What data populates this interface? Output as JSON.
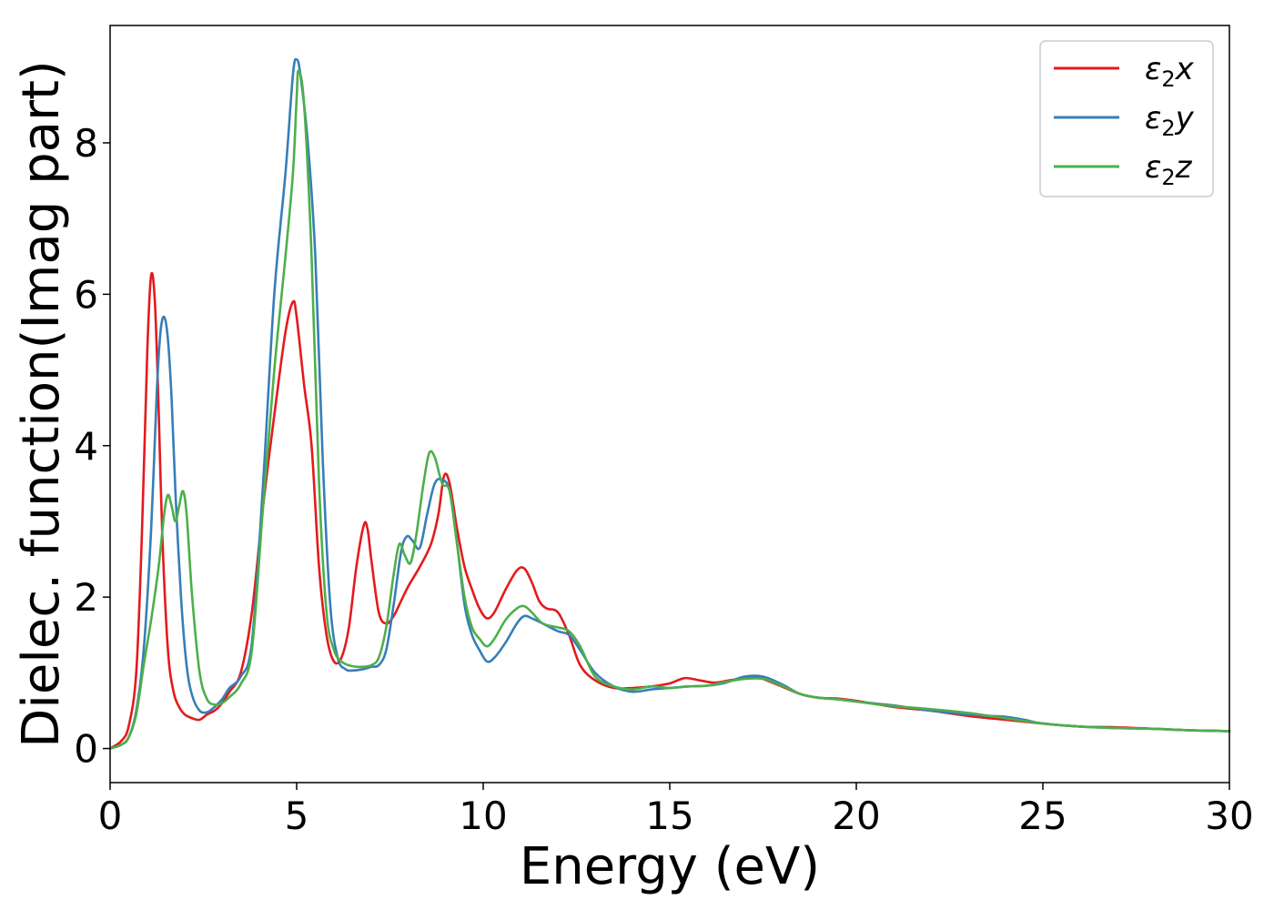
{
  "chart_data": {
    "type": "line",
    "title": "",
    "xlabel": "Energy (eV)",
    "ylabel": "Dielec. function(Imag part)",
    "xlim": [
      0,
      30
    ],
    "ylim": [
      -0.45,
      9.55
    ],
    "xticks": [
      0,
      5,
      10,
      15,
      20,
      25,
      30
    ],
    "xtick_labels": [
      "0",
      "5",
      "10",
      "15",
      "20",
      "25",
      "30"
    ],
    "yticks": [
      0,
      2,
      4,
      6,
      8
    ],
    "ytick_labels": [
      "0",
      "2",
      "4",
      "6",
      "8"
    ],
    "grid": false,
    "legend_position": "top-right",
    "series": [
      {
        "name": "ε2x",
        "legend_base": "ε",
        "legend_sub": "2",
        "legend_suffix": "x",
        "color": "#e41a1c",
        "x": [
          0,
          0.3,
          0.5,
          0.7,
          0.85,
          1.0,
          1.1,
          1.2,
          1.3,
          1.4,
          1.55,
          1.7,
          1.85,
          2.0,
          2.2,
          2.4,
          2.6,
          2.8,
          3.0,
          3.2,
          3.5,
          3.8,
          4.1,
          4.4,
          4.7,
          4.9,
          5.0,
          5.2,
          5.4,
          5.6,
          5.8,
          6.0,
          6.2,
          6.4,
          6.6,
          6.8,
          6.9,
          7.0,
          7.2,
          7.4,
          7.6,
          7.8,
          8.0,
          8.3,
          8.6,
          8.8,
          8.95,
          9.1,
          9.3,
          9.5,
          9.7,
          9.9,
          10.1,
          10.3,
          10.6,
          10.9,
          11.1,
          11.3,
          11.5,
          11.7,
          12.0,
          12.3,
          12.6,
          13.0,
          13.5,
          14.0,
          14.5,
          15.0,
          15.4,
          15.8,
          16.2,
          16.6,
          17.0,
          17.3,
          17.6,
          18.0,
          18.5,
          19.0,
          19.5,
          20.0,
          21.0,
          22.0,
          23.0,
          24.0,
          25.0,
          26.0,
          27.0,
          28.0,
          29.0,
          30.0
        ],
        "y": [
          0.0,
          0.1,
          0.3,
          1.0,
          2.8,
          5.3,
          6.25,
          5.9,
          4.5,
          2.8,
          1.3,
          0.75,
          0.55,
          0.45,
          0.4,
          0.38,
          0.45,
          0.5,
          0.6,
          0.75,
          1.0,
          1.8,
          3.2,
          4.4,
          5.5,
          5.9,
          5.7,
          4.8,
          4.0,
          2.4,
          1.5,
          1.15,
          1.2,
          1.6,
          2.4,
          2.95,
          2.9,
          2.5,
          1.8,
          1.65,
          1.75,
          1.95,
          2.15,
          2.4,
          2.7,
          3.1,
          3.6,
          3.5,
          2.9,
          2.4,
          2.1,
          1.85,
          1.72,
          1.8,
          2.1,
          2.35,
          2.38,
          2.2,
          1.95,
          1.85,
          1.8,
          1.5,
          1.1,
          0.9,
          0.8,
          0.8,
          0.82,
          0.86,
          0.93,
          0.9,
          0.87,
          0.9,
          0.93,
          0.95,
          0.9,
          0.82,
          0.72,
          0.67,
          0.66,
          0.63,
          0.55,
          0.5,
          0.43,
          0.38,
          0.33,
          0.29,
          0.28,
          0.26,
          0.24,
          0.23
        ]
      },
      {
        "name": "ε2y",
        "legend_base": "ε",
        "legend_sub": "2",
        "legend_suffix": "y",
        "color": "#377eb8",
        "x": [
          0,
          0.3,
          0.5,
          0.7,
          0.9,
          1.1,
          1.25,
          1.35,
          1.45,
          1.55,
          1.65,
          1.75,
          1.9,
          2.05,
          2.2,
          2.4,
          2.6,
          2.8,
          3.0,
          3.2,
          3.5,
          3.8,
          4.1,
          4.4,
          4.7,
          4.9,
          5.0,
          5.1,
          5.3,
          5.5,
          5.7,
          5.9,
          6.1,
          6.3,
          6.5,
          6.8,
          7.0,
          7.2,
          7.4,
          7.6,
          7.8,
          7.95,
          8.1,
          8.3,
          8.5,
          8.7,
          8.9,
          9.1,
          9.3,
          9.5,
          9.7,
          9.9,
          10.1,
          10.3,
          10.6,
          10.9,
          11.1,
          11.3,
          11.6,
          12.0,
          12.3,
          12.6,
          13.0,
          13.5,
          14.0,
          14.5,
          15.0,
          15.5,
          16.0,
          16.5,
          17.0,
          17.5,
          18.0,
          18.5,
          19.0,
          19.5,
          20.0,
          21.0,
          22.0,
          23.0,
          23.6,
          24.0,
          24.5,
          25.0,
          26.0,
          27.0,
          28.0,
          29.0,
          30.0
        ],
        "y": [
          0.0,
          0.05,
          0.15,
          0.5,
          1.3,
          2.9,
          4.7,
          5.5,
          5.7,
          5.4,
          4.6,
          3.4,
          2.0,
          1.1,
          0.7,
          0.5,
          0.48,
          0.55,
          0.65,
          0.8,
          0.95,
          1.4,
          3.5,
          6.0,
          7.6,
          8.9,
          9.1,
          8.9,
          8.0,
          6.5,
          3.8,
          1.9,
          1.2,
          1.05,
          1.03,
          1.05,
          1.08,
          1.1,
          1.3,
          1.9,
          2.6,
          2.8,
          2.75,
          2.65,
          3.1,
          3.5,
          3.55,
          3.4,
          2.7,
          1.9,
          1.5,
          1.3,
          1.15,
          1.2,
          1.4,
          1.65,
          1.75,
          1.72,
          1.65,
          1.55,
          1.5,
          1.3,
          1.0,
          0.82,
          0.75,
          0.78,
          0.8,
          0.82,
          0.83,
          0.87,
          0.95,
          0.95,
          0.85,
          0.72,
          0.67,
          0.65,
          0.62,
          0.57,
          0.5,
          0.45,
          0.43,
          0.42,
          0.38,
          0.33,
          0.29,
          0.27,
          0.26,
          0.24,
          0.23
        ]
      },
      {
        "name": "ε2z",
        "legend_base": "ε",
        "legend_sub": "2",
        "legend_suffix": "z",
        "color": "#4daf4a",
        "x": [
          0,
          0.3,
          0.5,
          0.7,
          0.9,
          1.1,
          1.3,
          1.45,
          1.55,
          1.65,
          1.75,
          1.85,
          1.95,
          2.05,
          2.2,
          2.4,
          2.6,
          2.8,
          3.0,
          3.2,
          3.5,
          3.8,
          4.1,
          4.4,
          4.7,
          4.9,
          5.0,
          5.05,
          5.2,
          5.4,
          5.6,
          5.8,
          6.0,
          6.2,
          6.4,
          6.6,
          6.8,
          7.0,
          7.2,
          7.4,
          7.6,
          7.75,
          7.9,
          8.05,
          8.2,
          8.4,
          8.55,
          8.7,
          8.9,
          9.1,
          9.3,
          9.5,
          9.7,
          9.9,
          10.1,
          10.3,
          10.6,
          10.9,
          11.1,
          11.3,
          11.6,
          12.0,
          12.3,
          12.6,
          13.0,
          13.5,
          14.0,
          14.5,
          15.0,
          15.5,
          16.0,
          16.5,
          17.0,
          17.5,
          18.0,
          18.5,
          19.0,
          19.5,
          20.0,
          21.0,
          22.0,
          23.0,
          24.0,
          25.0,
          26.0,
          27.0,
          28.0,
          29.0,
          30.0
        ],
        "y": [
          0.0,
          0.05,
          0.15,
          0.45,
          1.1,
          1.7,
          2.4,
          3.1,
          3.35,
          3.2,
          3.0,
          3.2,
          3.4,
          3.1,
          2.0,
          1.0,
          0.65,
          0.58,
          0.6,
          0.68,
          0.85,
          1.3,
          3.2,
          5.0,
          6.5,
          7.6,
          8.6,
          8.95,
          8.5,
          6.5,
          3.5,
          1.8,
          1.3,
          1.15,
          1.1,
          1.08,
          1.08,
          1.1,
          1.2,
          1.6,
          2.3,
          2.7,
          2.55,
          2.45,
          2.8,
          3.5,
          3.9,
          3.85,
          3.5,
          3.4,
          2.7,
          2.0,
          1.6,
          1.45,
          1.35,
          1.45,
          1.7,
          1.85,
          1.88,
          1.8,
          1.65,
          1.6,
          1.55,
          1.35,
          0.95,
          0.82,
          0.78,
          0.82,
          0.8,
          0.82,
          0.83,
          0.88,
          0.92,
          0.92,
          0.83,
          0.72,
          0.67,
          0.65,
          0.62,
          0.56,
          0.52,
          0.47,
          0.4,
          0.33,
          0.29,
          0.27,
          0.26,
          0.24,
          0.23
        ]
      }
    ]
  }
}
